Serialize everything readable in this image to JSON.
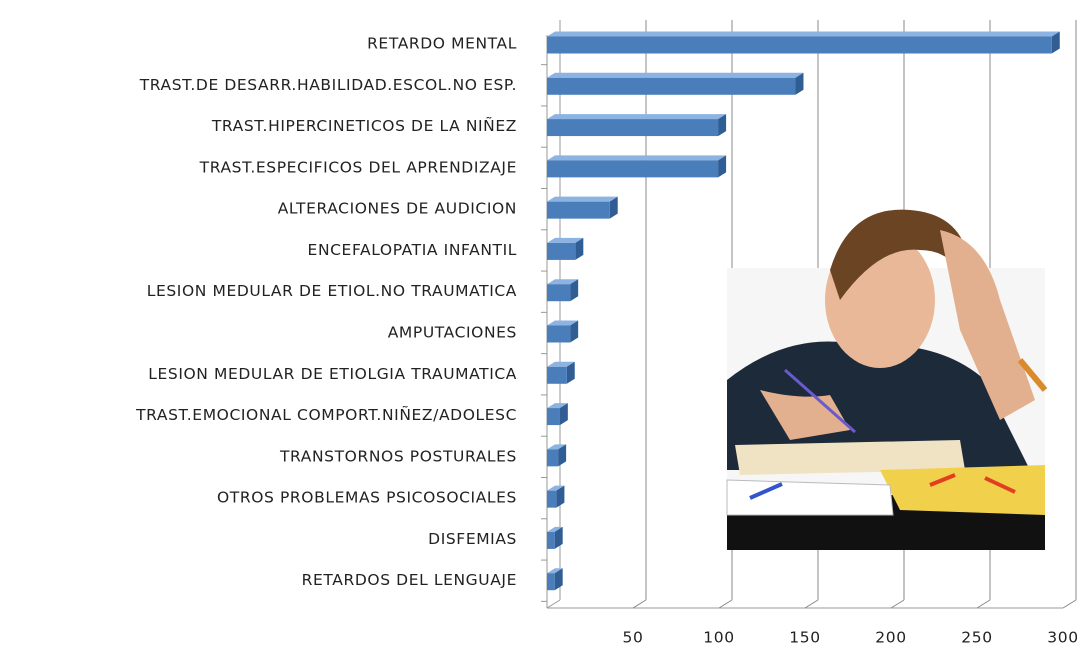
{
  "chart_data": {
    "type": "bar",
    "orientation": "horizontal",
    "categories": [
      "RETARDO MENTAL",
      "TRAST.DE DESARR.HABILIDAD.ESCOL.NO ESP.",
      "TRAST.HIPERCINETICOS DE LA NIÑEZ",
      "TRAST.ESPECIFICOS DEL APRENDIZAJE",
      "ALTERACIONES DE AUDICION",
      "ENCEFALOPATIA INFANTIL",
      "LESION MEDULAR DE ETIOL.NO TRAUMATICA",
      "AMPUTACIONES",
      "LESION MEDULAR DE ETIOLGIA TRAUMATICA",
      "TRAST.EMOCIONAL COMPORT.NIÑEZ/ADOLESC",
      "TRANSTORNOS POSTURALES",
      "OTROS PROBLEMAS PSICOSOCIALES",
      "DISFEMIAS",
      "RETARDOS DEL LENGUAJE"
    ],
    "values": [
      298,
      149,
      104,
      104,
      41,
      21,
      18,
      18,
      16,
      12,
      11,
      10,
      9,
      9
    ],
    "color": "#4a7ebb",
    "xlim": [
      0,
      300
    ],
    "xticks": [
      50,
      100,
      150,
      200,
      250,
      300
    ],
    "grid": true
  }
}
